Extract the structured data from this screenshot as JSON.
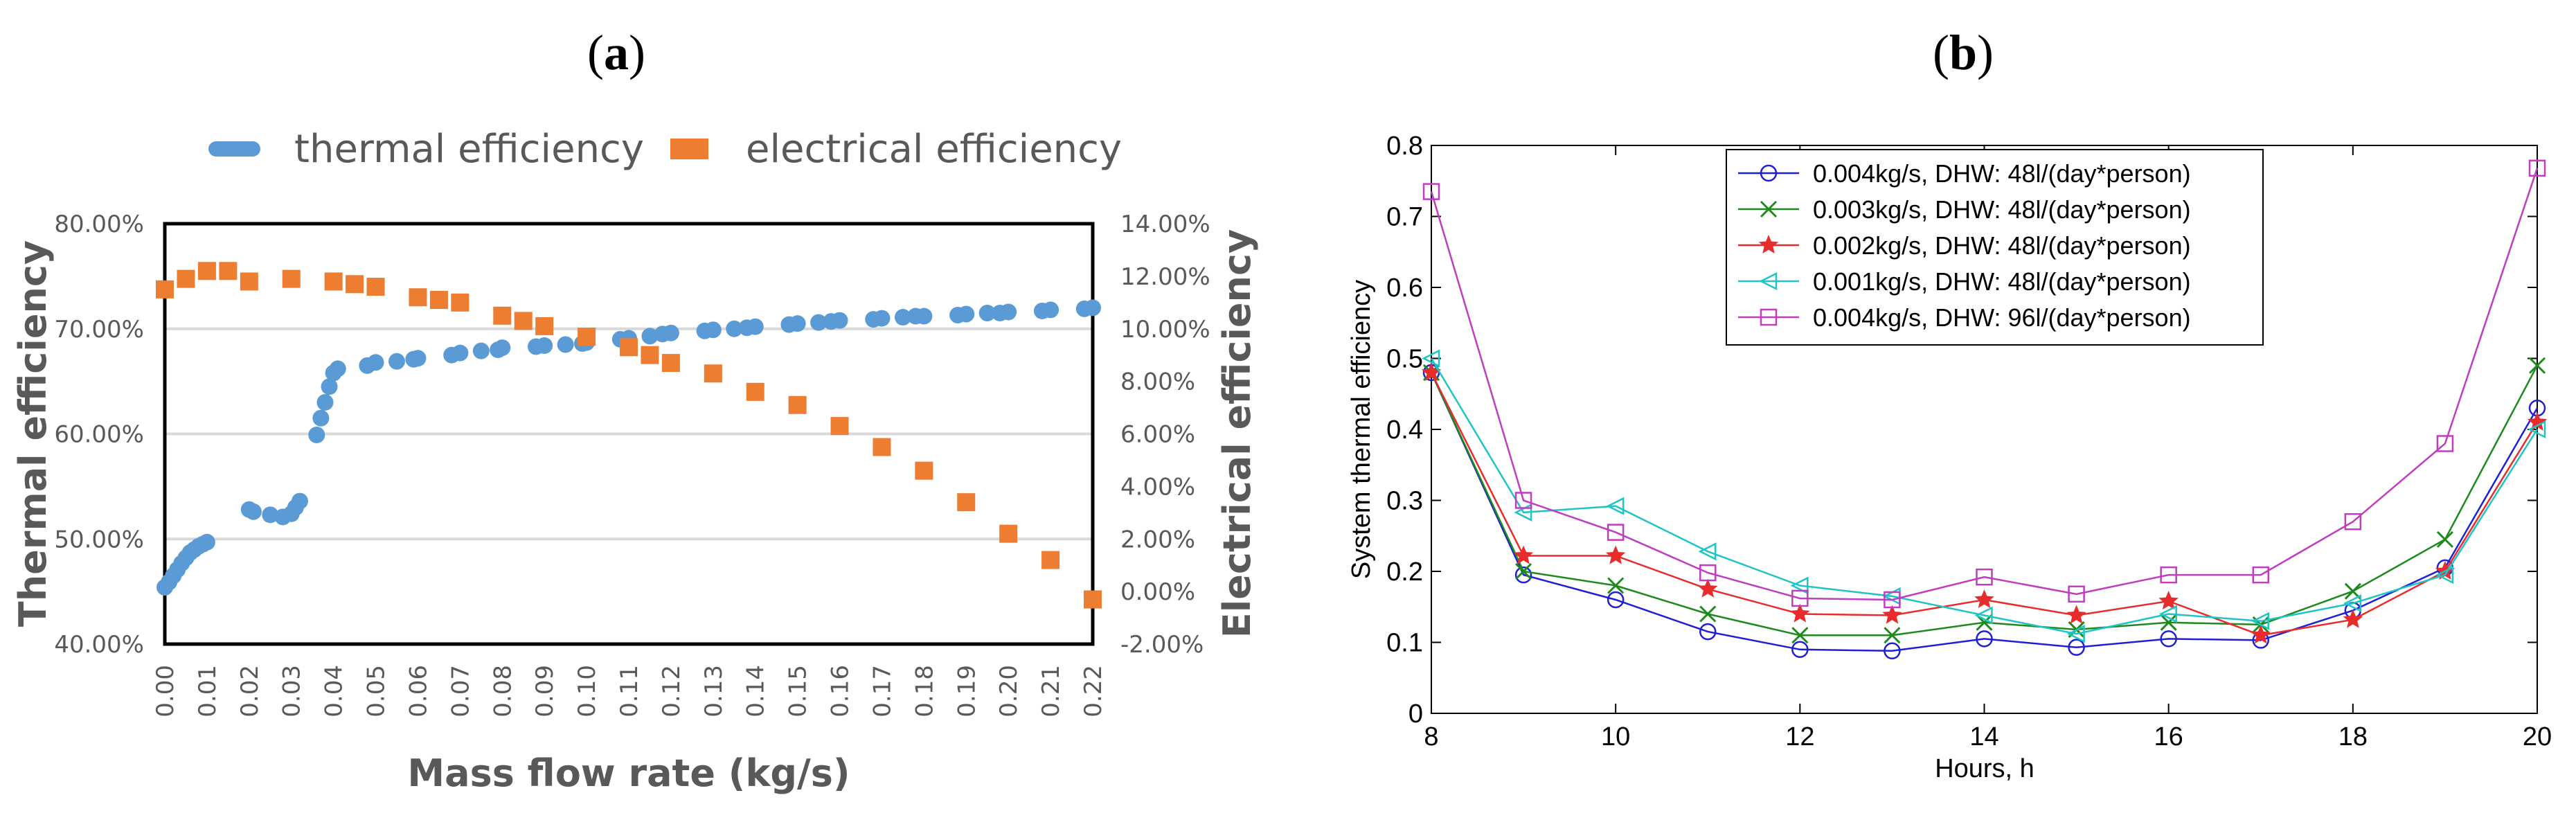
{
  "panels": {
    "a_label_open": "(",
    "a_label_letter": "a",
    "a_label_close": ")",
    "b_label_open": "(",
    "b_label_letter": "b",
    "b_label_close": ")"
  },
  "chart_data": [
    {
      "id": "a",
      "type": "scatter",
      "xlabel": "Mass flow rate (kg/s)",
      "ylabel": "Thermal efficiency",
      "y2label": "Electrical efficiency",
      "x_ticks": [
        "0.00",
        "0.01",
        "0.02",
        "0.03",
        "0.04",
        "0.05",
        "0.06",
        "0.07",
        "0.08",
        "0.09",
        "0.10",
        "0.11",
        "0.12",
        "0.13",
        "0.14",
        "0.15",
        "0.16",
        "0.17",
        "0.18",
        "0.19",
        "0.20",
        "0.21",
        "0.22"
      ],
      "xlim": [
        0,
        0.22
      ],
      "ylim": [
        40,
        80
      ],
      "y_ticks": [
        "40.00%",
        "50.00%",
        "60.00%",
        "70.00%",
        "80.00%"
      ],
      "y_tick_values": [
        40,
        50,
        60,
        70,
        80
      ],
      "y2lim": [
        -2,
        14
      ],
      "y2_ticks": [
        "-2.00%",
        "0.00%",
        "2.00%",
        "4.00%",
        "6.00%",
        "8.00%",
        "10.00%",
        "12.00%",
        "14.00%"
      ],
      "y2_tick_values": [
        -2,
        0,
        2,
        4,
        6,
        8,
        10,
        12,
        14
      ],
      "grid": true,
      "legend_position": "top",
      "series": [
        {
          "name": "thermal efficiency",
          "axis": "left",
          "color": "#5b9bd5",
          "marker": "circle",
          "x": [
            0.0,
            0.001,
            0.002,
            0.003,
            0.004,
            0.005,
            0.006,
            0.007,
            0.008,
            0.009,
            0.01,
            0.02,
            0.021,
            0.025,
            0.028,
            0.03,
            0.031,
            0.032,
            0.036,
            0.037,
            0.038,
            0.039,
            0.04,
            0.041,
            0.048,
            0.05,
            0.055,
            0.059,
            0.06,
            0.068,
            0.07,
            0.075,
            0.079,
            0.08,
            0.088,
            0.09,
            0.095,
            0.099,
            0.1,
            0.108,
            0.11,
            0.115,
            0.118,
            0.12,
            0.128,
            0.13,
            0.135,
            0.138,
            0.14,
            0.148,
            0.15,
            0.155,
            0.158,
            0.16,
            0.168,
            0.17,
            0.175,
            0.178,
            0.18,
            0.188,
            0.19,
            0.195,
            0.198,
            0.2,
            0.208,
            0.21,
            0.218,
            0.22
          ],
          "values": [
            45.4,
            45.9,
            46.5,
            47.1,
            47.7,
            48.2,
            48.7,
            49.0,
            49.3,
            49.5,
            49.7,
            52.8,
            52.6,
            52.3,
            52.1,
            52.4,
            53.0,
            53.6,
            59.9,
            61.5,
            63.0,
            64.5,
            65.8,
            66.2,
            66.5,
            66.8,
            66.9,
            67.1,
            67.2,
            67.5,
            67.7,
            67.9,
            68.0,
            68.2,
            68.3,
            68.4,
            68.5,
            68.6,
            68.7,
            69.0,
            69.1,
            69.3,
            69.5,
            69.6,
            69.8,
            69.9,
            70.0,
            70.1,
            70.2,
            70.4,
            70.5,
            70.6,
            70.7,
            70.8,
            70.9,
            71.0,
            71.1,
            71.2,
            71.2,
            71.3,
            71.4,
            71.5,
            71.5,
            71.6,
            71.7,
            71.8,
            71.9,
            72.0
          ]
        },
        {
          "name": "electrical efficiency",
          "axis": "right",
          "color": "#ed7d31",
          "marker": "square",
          "x": [
            0.0,
            0.005,
            0.01,
            0.015,
            0.02,
            0.03,
            0.04,
            0.045,
            0.05,
            0.06,
            0.065,
            0.07,
            0.08,
            0.085,
            0.09,
            0.1,
            0.11,
            0.115,
            0.12,
            0.13,
            0.14,
            0.15,
            0.16,
            0.17,
            0.18,
            0.19,
            0.2,
            0.21,
            0.22
          ],
          "values": [
            11.5,
            11.9,
            12.2,
            12.2,
            11.8,
            11.9,
            11.8,
            11.7,
            11.6,
            11.2,
            11.1,
            11.0,
            10.5,
            10.3,
            10.1,
            9.7,
            9.3,
            9.0,
            8.7,
            8.3,
            7.6,
            7.1,
            6.3,
            5.5,
            4.6,
            3.4,
            2.2,
            1.2,
            -0.3
          ]
        }
      ]
    },
    {
      "id": "b",
      "type": "line",
      "xlabel": "Hours, h",
      "ylabel": "System thermal efficiency",
      "x": [
        8,
        9,
        10,
        11,
        12,
        13,
        14,
        15,
        16,
        17,
        18,
        19,
        20
      ],
      "xlim": [
        8,
        20
      ],
      "x_ticks": [
        "8",
        "10",
        "12",
        "14",
        "16",
        "18",
        "20"
      ],
      "x_tick_values": [
        8,
        10,
        12,
        14,
        16,
        18,
        20
      ],
      "ylim": [
        0,
        0.8
      ],
      "y_ticks": [
        "0",
        "0.1",
        "0.2",
        "0.3",
        "0.4",
        "0.5",
        "0.6",
        "0.7",
        "0.8"
      ],
      "y_tick_values": [
        0,
        0.1,
        0.2,
        0.3,
        0.4,
        0.5,
        0.6,
        0.7,
        0.8
      ],
      "grid": false,
      "legend_position": "top-center",
      "series": [
        {
          "name": "0.004kg/s, DHW: 48l/(day*person)",
          "color": "#1f1fd6",
          "marker": "circle",
          "values": [
            0.48,
            0.195,
            0.16,
            0.115,
            0.09,
            0.088,
            0.105,
            0.093,
            0.105,
            0.103,
            0.145,
            0.205,
            0.43
          ]
        },
        {
          "name": "0.003kg/s, DHW: 48l/(day*person)",
          "color": "#1d8a1d",
          "marker": "x",
          "values": [
            0.48,
            0.2,
            0.18,
            0.14,
            0.11,
            0.11,
            0.128,
            0.118,
            0.128,
            0.125,
            0.172,
            0.245,
            0.49
          ]
        },
        {
          "name": "0.002kg/s, DHW: 48l/(day*person)",
          "color": "#e82c2c",
          "marker": "star",
          "values": [
            0.48,
            0.222,
            0.222,
            0.175,
            0.14,
            0.138,
            0.16,
            0.138,
            0.158,
            0.11,
            0.132,
            0.2,
            0.41
          ]
        },
        {
          "name": "0.001kg/s, DHW: 48l/(day*person)",
          "color": "#20c4c4",
          "marker": "triangle-left",
          "values": [
            0.5,
            0.283,
            0.292,
            0.228,
            0.18,
            0.165,
            0.138,
            0.112,
            0.14,
            0.13,
            0.155,
            0.195,
            0.4
          ]
        },
        {
          "name": "0.004kg/s, DHW: 96l/(day*person)",
          "color": "#c03cc0",
          "marker": "square",
          "values": [
            0.735,
            0.3,
            0.255,
            0.198,
            0.162,
            0.16,
            0.192,
            0.168,
            0.195,
            0.195,
            0.27,
            0.38,
            0.768
          ]
        }
      ]
    }
  ]
}
